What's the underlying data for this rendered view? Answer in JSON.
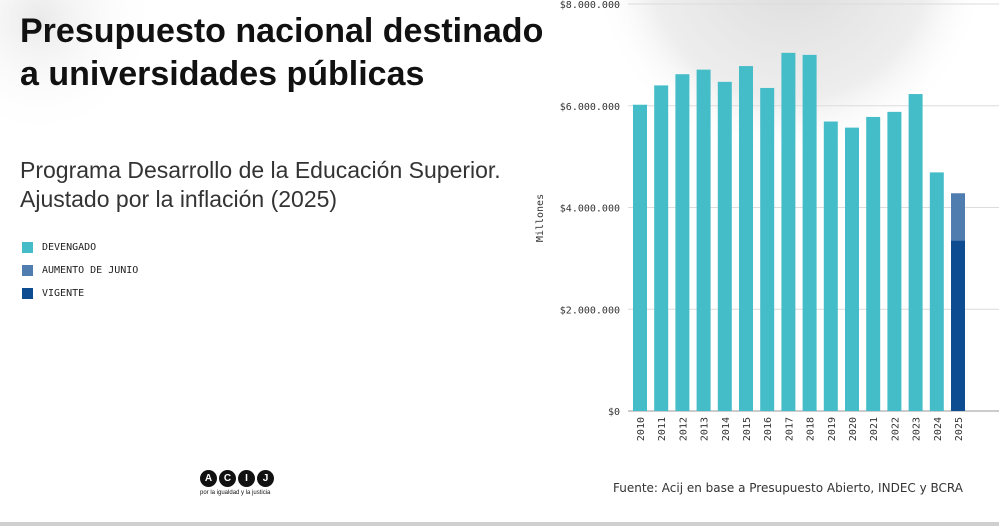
{
  "title": "Presupuesto nacional destinado a universidades públicas",
  "subtitle": "Programa Desarrollo de la Educación Superior. Ajustado por la inflación (2025)",
  "legend": [
    {
      "label": "DEVENGADO",
      "color": "#45BDC9"
    },
    {
      "label": "AUMENTO DE JUNIO",
      "color": "#4F7DB0"
    },
    {
      "label": "VIGENTE",
      "color": "#0E4C92"
    }
  ],
  "logo": {
    "letters": [
      "A",
      "C",
      "I",
      "J"
    ],
    "tagline": "por la igualdad y la justicia"
  },
  "source": "Fuente: Acij en base a Presupuesto Abierto, INDEC y BCRA",
  "chart_data": {
    "type": "bar",
    "ylabel": "Millones",
    "ylim": [
      0,
      8000000
    ],
    "y_ticks": [
      0,
      2000000,
      4000000,
      6000000,
      8000000
    ],
    "y_tick_labels": [
      "$0",
      "$2.000.000",
      "$4.000.000",
      "$6.000.000",
      "$8.000.000"
    ],
    "grid": true,
    "categories": [
      "2010",
      "2011",
      "2012",
      "2013",
      "2014",
      "2015",
      "2016",
      "2017",
      "2018",
      "2019",
      "2020",
      "2021",
      "2022",
      "2023",
      "2024",
      "2025"
    ],
    "series": [
      {
        "name": "DEVENGADO",
        "color": "#45BDC9",
        "values": [
          6020000,
          6400000,
          6620000,
          6710000,
          6470000,
          6780000,
          6350000,
          7040000,
          7000000,
          5690000,
          5570000,
          5780000,
          5880000,
          6230000,
          4690000,
          null
        ]
      },
      {
        "name": "VIGENTE",
        "color": "#0E4C92",
        "values": [
          null,
          null,
          null,
          null,
          null,
          null,
          null,
          null,
          null,
          null,
          null,
          null,
          null,
          null,
          null,
          3350000
        ]
      },
      {
        "name": "AUMENTO DE JUNIO",
        "color": "#4F7DB0",
        "values": [
          null,
          null,
          null,
          null,
          null,
          null,
          null,
          null,
          null,
          null,
          null,
          null,
          null,
          null,
          null,
          930000
        ]
      }
    ],
    "stacked": true
  }
}
